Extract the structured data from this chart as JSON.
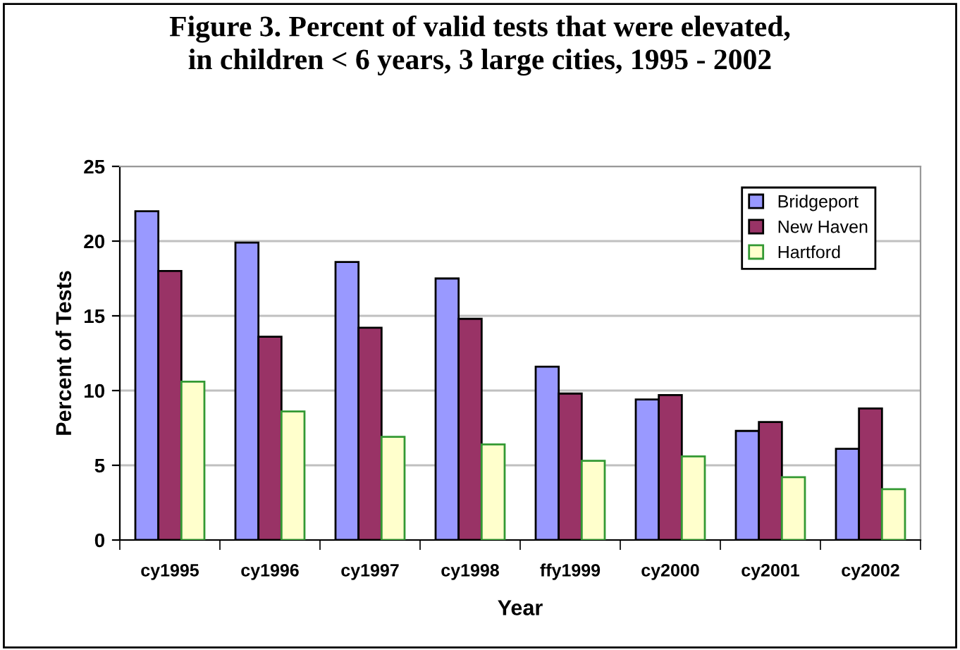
{
  "chart_data": {
    "type": "bar",
    "title": "Figure 3. Percent of valid tests that were elevated,\nin children < 6 years, 3 large cities, 1995 - 2002",
    "xlabel": "Year",
    "ylabel": "Percent of Tests",
    "categories": [
      "cy1995",
      "cy1996",
      "cy1997",
      "cy1998",
      "ffy1999",
      "cy2000",
      "cy2001",
      "cy2002"
    ],
    "series": [
      {
        "name": "Bridgeport",
        "color": "#9999ff",
        "values": [
          22,
          19.9,
          18.6,
          17.5,
          11.6,
          9.4,
          7.3,
          6.1
        ]
      },
      {
        "name": "New Haven",
        "color": "#993366",
        "values": [
          18,
          13.6,
          14.2,
          14.8,
          9.8,
          9.7,
          7.9,
          8.8
        ]
      },
      {
        "name": "Hartford",
        "color": "#ffffcc",
        "values": [
          10.6,
          8.6,
          6.9,
          6.4,
          5.3,
          5.6,
          4.2,
          3.4
        ]
      }
    ],
    "ylim": [
      0,
      25
    ],
    "yticks": [
      0,
      5,
      10,
      15,
      20,
      25
    ],
    "grid": "y",
    "legend": "top right"
  }
}
